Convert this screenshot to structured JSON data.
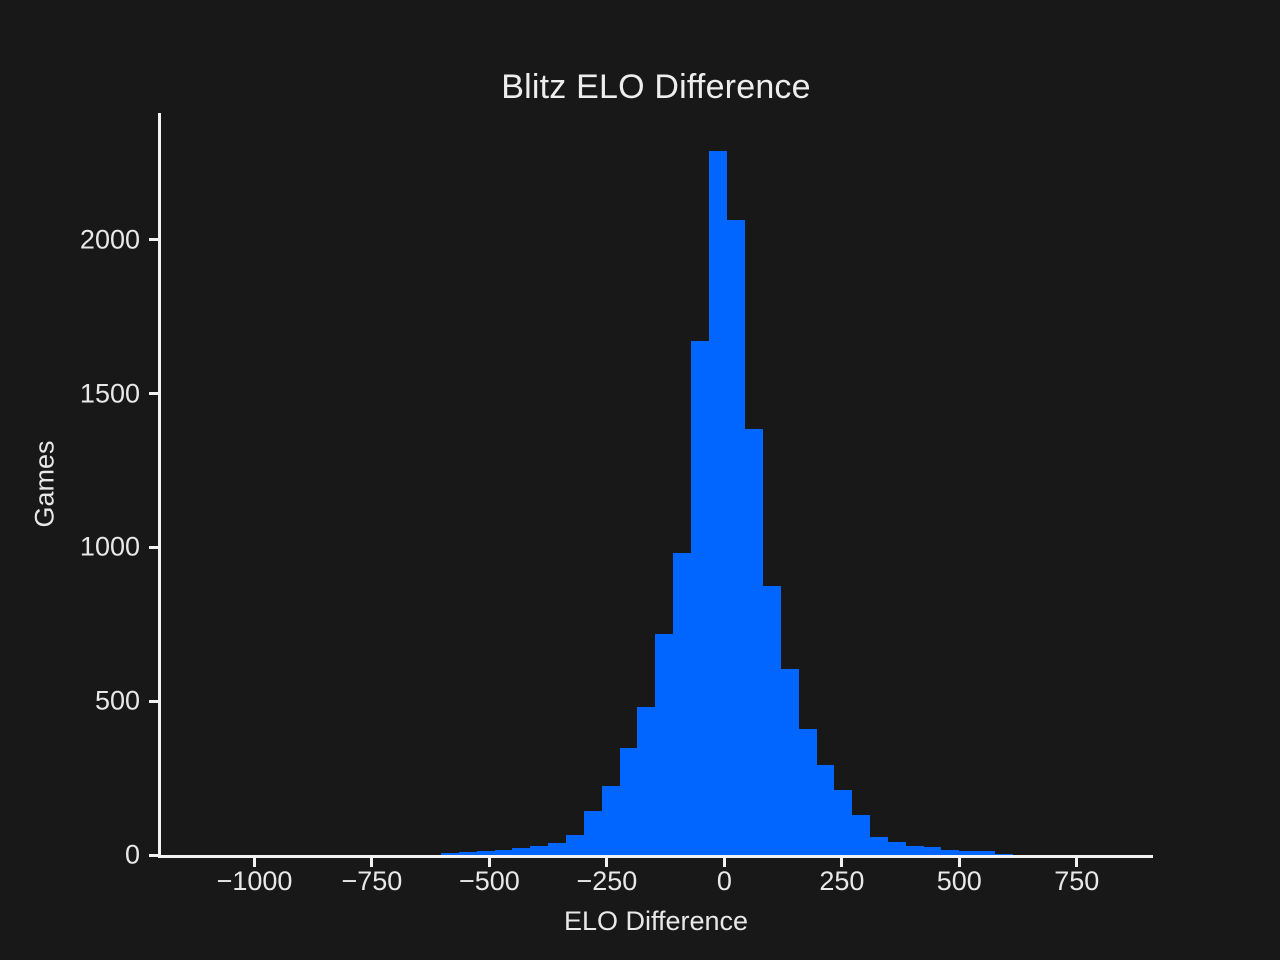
{
  "title": "Blitz ELO Difference",
  "x_axis_label": "ELO Difference",
  "y_axis_label": "Games",
  "colors": {
    "background": "#181818",
    "bar": "#0066ff",
    "axis": "#f2f2f2",
    "text": "#e8e8e8"
  },
  "chart_data": {
    "type": "bar",
    "subtype": "histogram",
    "title": "Blitz ELO Difference",
    "xlabel": "ELO Difference",
    "ylabel": "Games",
    "grid": false,
    "legend": null,
    "background": "#181818",
    "bar_color": "#0066ff",
    "xlim": [
      -1201,
      910
    ],
    "ylim": [
      0,
      2412
    ],
    "x_ticks": [
      -1000,
      -750,
      -500,
      -250,
      0,
      250,
      500,
      750
    ],
    "x_tick_labels": [
      "−1000",
      "−750",
      "−500",
      "−250",
      "0",
      "250",
      "500",
      "750"
    ],
    "y_ticks": [
      0,
      500,
      1000,
      1500,
      2000
    ],
    "y_tick_labels": [
      "0",
      "500",
      "1000",
      "1500",
      "2000"
    ],
    "bin_start": -603,
    "bin_width": 38,
    "bin_edges": [
      -603,
      -565,
      -527,
      -489,
      -451,
      -413,
      -375,
      -337,
      -299,
      -261,
      -223,
      -185,
      -147,
      -109,
      -71,
      -33,
      5,
      43,
      81,
      119,
      157,
      195,
      233,
      271,
      309,
      347,
      385,
      423,
      461,
      499,
      537,
      575,
      613
    ],
    "counts": [
      8,
      10,
      13,
      18,
      22,
      29,
      40,
      65,
      144,
      225,
      347,
      482,
      718,
      981,
      1670,
      2290,
      2065,
      1386,
      873,
      605,
      410,
      293,
      211,
      130,
      60,
      41,
      29,
      25,
      18,
      14,
      12,
      3
    ]
  }
}
